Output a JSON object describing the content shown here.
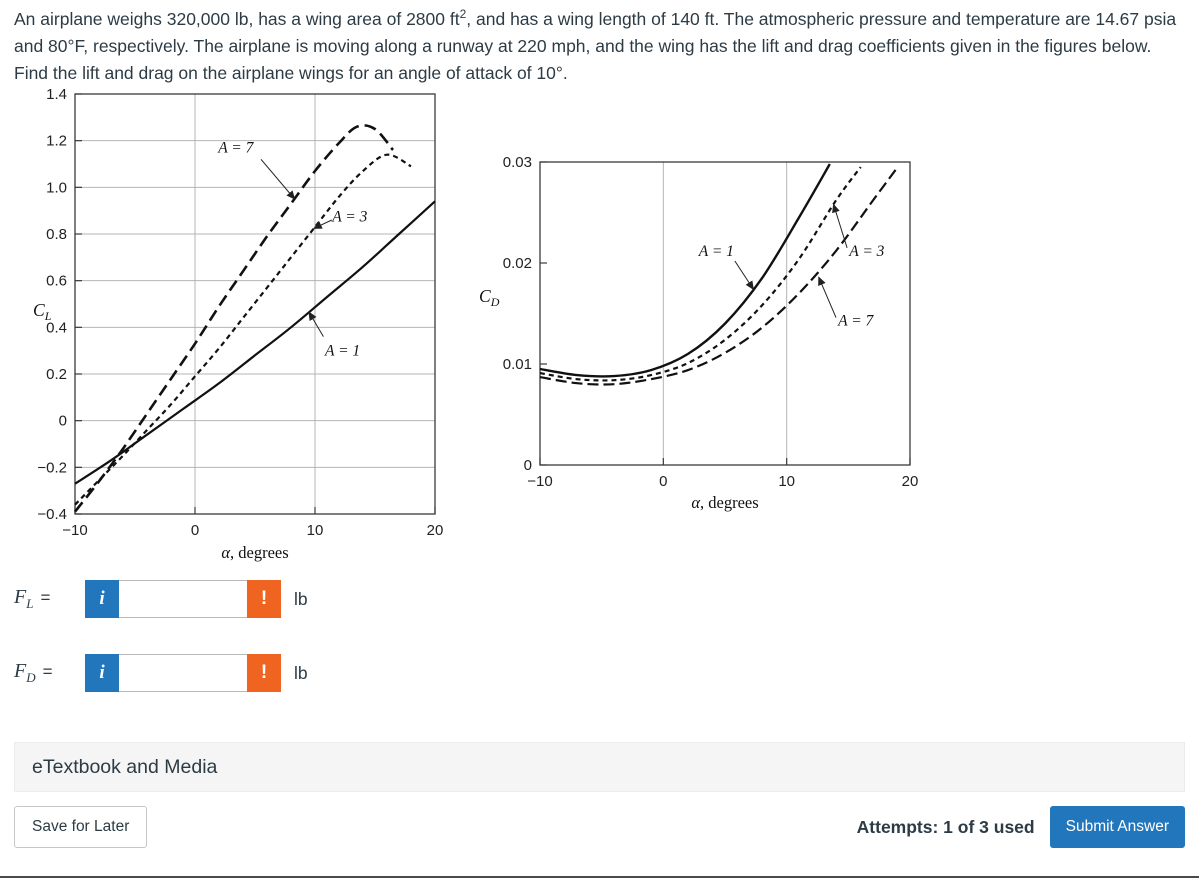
{
  "problem": {
    "segments": [
      {
        "text": "An airplane weighs 320,000 lb, has a wing area of 2800 ft"
      },
      {
        "text": "2",
        "sup": true
      },
      {
        "text": ", and has a wing length of 140 ft. The atmospheric pressure and temperature are 14.67 psia and 80°F, respectively. The airplane is moving along a runway at 220 mph, and the wing has the lift and drag coefficients given in the figures below. Find the lift and drag on the airplane wings for an angle of attack of 10°."
      }
    ]
  },
  "answers": [
    {
      "variable": "F",
      "subscript": "L",
      "equals": "=",
      "value": "",
      "unit": "lb",
      "info_icon": "i",
      "alert_icon": "!"
    },
    {
      "variable": "F",
      "subscript": "D",
      "equals": "=",
      "value": "",
      "unit": "lb",
      "info_icon": "i",
      "alert_icon": "!"
    }
  ],
  "etextbook_bar": {
    "label": "eTextbook and Media"
  },
  "footer": {
    "save_button": "Save for Later",
    "attempts": "Attempts: 1 of 3 used",
    "submit_button": "Submit Answer"
  },
  "colors": {
    "accent_blue": "#2276bc",
    "alert_orange": "#ef6421",
    "text": "#2d3b45"
  },
  "chart_data": [
    {
      "type": "line",
      "title": "Lift coefficient vs angle of attack",
      "xlabel": "α, degrees",
      "ylabel": "C_L",
      "xlim": [
        -10,
        20
      ],
      "ylim": [
        -0.4,
        1.4
      ],
      "xticks": [
        -10,
        0,
        10,
        20
      ],
      "xtick_labels": [
        "−10",
        "0",
        "10",
        "20"
      ],
      "yticks": [
        -0.4,
        -0.2,
        0,
        0.2,
        0.4,
        0.6,
        0.8,
        1.0,
        1.2,
        1.4
      ],
      "ytick_labels": [
        "−0.4",
        "−0.2",
        "0",
        "0.2",
        "0.4",
        "0.6",
        "0.8",
        "1.0",
        "1.2",
        "1.4"
      ],
      "grid_x": [
        0,
        10
      ],
      "grid_y": [
        -0.2,
        0,
        0.2,
        0.4,
        0.6,
        0.8,
        1.0,
        1.2
      ],
      "legend_position": "inline-annotations",
      "series": [
        {
          "name": "A = 7",
          "dash": "12,6",
          "width": 2.6,
          "x": [
            -10,
            -8,
            -6,
            -4,
            -2,
            0,
            2,
            4,
            6,
            8,
            10,
            12,
            13.5,
            15,
            16.5
          ],
          "y": [
            -0.39,
            -0.26,
            -0.12,
            0.03,
            0.18,
            0.33,
            0.49,
            0.64,
            0.79,
            0.93,
            1.07,
            1.19,
            1.26,
            1.25,
            1.16
          ]
        },
        {
          "name": "A = 3",
          "dash": "5,4",
          "width": 2.2,
          "x": [
            -10,
            -8,
            -6,
            -4,
            -2,
            0,
            2,
            4,
            6,
            8,
            10,
            12,
            14,
            16,
            18
          ],
          "y": [
            -0.36,
            -0.255,
            -0.15,
            -0.04,
            0.07,
            0.19,
            0.31,
            0.44,
            0.57,
            0.7,
            0.83,
            0.96,
            1.07,
            1.14,
            1.09
          ]
        },
        {
          "name": "A = 1",
          "dash": "",
          "width": 2.2,
          "x": [
            -10,
            -7,
            -4,
            -1,
            2,
            5,
            8,
            11,
            14,
            17,
            20
          ],
          "y": [
            -0.27,
            -0.17,
            -0.06,
            0.05,
            0.16,
            0.28,
            0.4,
            0.53,
            0.66,
            0.8,
            0.94
          ]
        }
      ],
      "annotations": [
        {
          "text": "A = 7",
          "x": 3.4,
          "y": 1.17,
          "line": [
            5.5,
            1.12,
            8.3,
            0.95
          ]
        },
        {
          "text": "A = 3",
          "x": 12.9,
          "y": 0.875,
          "line": [
            11.4,
            0.86,
            9.9,
            0.824
          ]
        },
        {
          "text": "A = 1",
          "x": 12.3,
          "y": 0.3,
          "line": [
            10.7,
            0.36,
            9.5,
            0.465
          ]
        }
      ]
    },
    {
      "type": "line",
      "title": "Drag coefficient vs angle of attack",
      "xlabel": "α, degrees",
      "ylabel": "C_D",
      "xlim": [
        -10,
        20
      ],
      "ylim": [
        0,
        0.03
      ],
      "xticks": [
        -10,
        0,
        10,
        20
      ],
      "xtick_labels": [
        "−10",
        "0",
        "10",
        "20"
      ],
      "yticks": [
        0,
        0.01,
        0.02,
        0.03
      ],
      "ytick_labels": [
        "0",
        "0.01",
        "0.02",
        "0.03"
      ],
      "grid_x": [
        0,
        10
      ],
      "grid_y": [],
      "legend_position": "inline-annotations",
      "series": [
        {
          "name": "A = 1",
          "dash": "",
          "width": 2.4,
          "x": [
            -10,
            -7,
            -4,
            -1,
            2,
            5,
            8,
            11,
            13.5
          ],
          "y": [
            0.0095,
            0.0089,
            0.0088,
            0.0094,
            0.011,
            0.014,
            0.0185,
            0.0245,
            0.0298
          ]
        },
        {
          "name": "A = 3",
          "dash": "5,4",
          "width": 2.2,
          "x": [
            -10,
            -7,
            -4,
            -1,
            2,
            5,
            8,
            11,
            14,
            16
          ],
          "y": [
            0.0091,
            0.0085,
            0.0084,
            0.0089,
            0.0101,
            0.0124,
            0.0158,
            0.0204,
            0.0262,
            0.0295
          ]
        },
        {
          "name": "A = 7",
          "dash": "11,5",
          "width": 2.2,
          "x": [
            -10,
            -7,
            -4,
            -1,
            2,
            5,
            8,
            11,
            14,
            17,
            19
          ],
          "y": [
            0.0087,
            0.0081,
            0.008,
            0.0085,
            0.0094,
            0.0111,
            0.0136,
            0.017,
            0.0212,
            0.0262,
            0.0295
          ]
        }
      ],
      "annotations": [
        {
          "text": "A = 1",
          "x": 4.3,
          "y": 0.0212,
          "line": [
            5.8,
            0.0202,
            7.3,
            0.0174
          ]
        },
        {
          "text": "A = 3",
          "x": 16.5,
          "y": 0.0212,
          "line": [
            14.9,
            0.0215,
            13.8,
            0.0258
          ]
        },
        {
          "text": "A = 7",
          "x": 15.6,
          "y": 0.0143,
          "line": [
            14.0,
            0.0146,
            12.6,
            0.0186
          ]
        }
      ]
    }
  ]
}
